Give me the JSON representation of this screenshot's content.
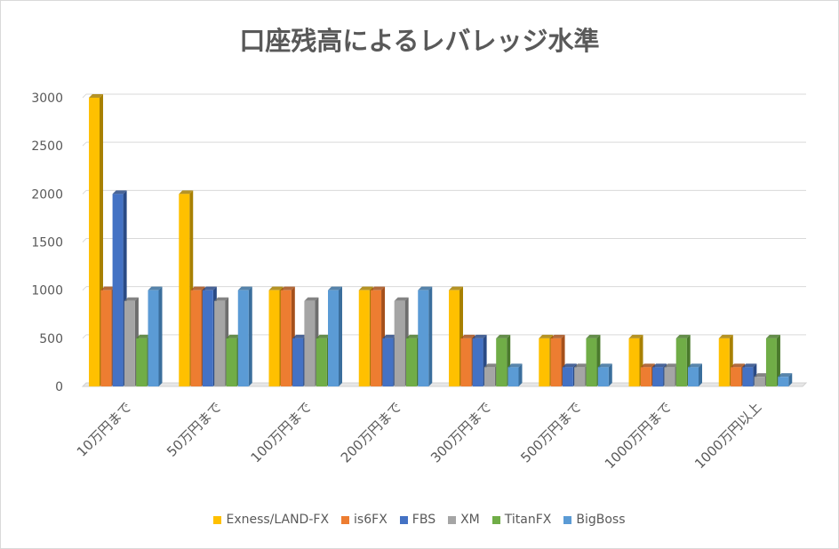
{
  "chart_data": {
    "type": "bar",
    "title": "口座残高によるレバレッジ水準",
    "xlabel": "",
    "ylabel": "",
    "categories": [
      "10万円まで",
      "50万円まで",
      "100万円まで",
      "200万円まで",
      "300万円まで",
      "500万円まで",
      "1000万円まで",
      "1000万円以上"
    ],
    "ylim": [
      0,
      3000
    ],
    "yticks": [
      0,
      500,
      1000,
      1500,
      2000,
      2500,
      3000
    ],
    "grid": true,
    "legend_position": "bottom",
    "style": "3d-clustered-column",
    "series": [
      {
        "name": "Exness/LAND-FX",
        "color": "#ffc000",
        "side": "#a88000",
        "values": [
          3000,
          2000,
          1000,
          1000,
          1000,
          500,
          500,
          500
        ]
      },
      {
        "name": "is6FX",
        "color": "#ed7d31",
        "side": "#a5501b",
        "values": [
          1000,
          1000,
          1000,
          1000,
          500,
          500,
          200,
          200
        ]
      },
      {
        "name": "FBS",
        "color": "#4472c4",
        "side": "#2a4a85",
        "values": [
          2000,
          1000,
          500,
          500,
          500,
          200,
          200,
          200
        ]
      },
      {
        "name": "XM",
        "color": "#a5a5a5",
        "side": "#6e6e6e",
        "values": [
          888,
          888,
          888,
          888,
          200,
          200,
          200,
          100
        ]
      },
      {
        "name": "TitanFX",
        "color": "#70ad47",
        "side": "#4a7a2c",
        "values": [
          500,
          500,
          500,
          500,
          500,
          500,
          500,
          500
        ]
      },
      {
        "name": "BigBoss",
        "color": "#5b9bd5",
        "side": "#3a6e9c",
        "values": [
          1000,
          1000,
          1000,
          1000,
          200,
          200,
          200,
          100
        ]
      }
    ]
  }
}
